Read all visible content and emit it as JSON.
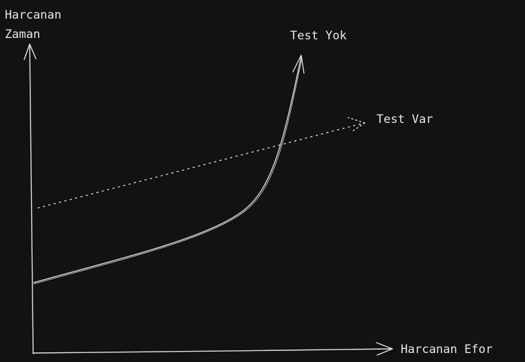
{
  "axes": {
    "y_label_line1": "Harcanan",
    "y_label_line2": "Zaman",
    "x_label": "Harcanan Efor"
  },
  "curves": {
    "test_yok_label": "Test Yok",
    "test_var_label": "Test Var"
  },
  "colors": {
    "background": "#121212",
    "stroke": "#e8e8e8"
  }
}
